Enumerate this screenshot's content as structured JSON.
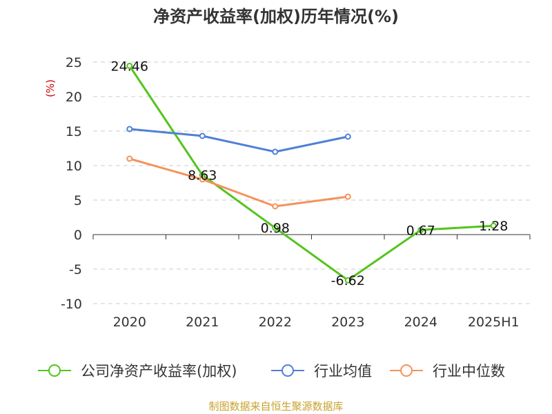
{
  "chart_data": {
    "type": "line",
    "title": "净资产收益率(加权)历年情况(%)",
    "ylabel": "(%)",
    "categories": [
      "2020",
      "2021",
      "2022",
      "2023",
      "2024",
      "2025H1"
    ],
    "ylim": [
      -10,
      25
    ],
    "yticks": [
      25,
      20,
      15,
      10,
      5,
      0,
      -5,
      -10
    ],
    "grid": true,
    "legend_position": "bottom",
    "series": [
      {
        "name": "公司净资产收益率(加权)",
        "color": "#52c41a",
        "values": [
          24.46,
          8.63,
          0.98,
          -6.62,
          0.67,
          1.28
        ],
        "labels": [
          "24.46",
          "8.63",
          "0.98",
          "-6.62",
          "0.67",
          "1.28"
        ]
      },
      {
        "name": "行业均值",
        "color": "#4e7fd9",
        "values": [
          15.3,
          14.3,
          12.0,
          14.2,
          null,
          null
        ]
      },
      {
        "name": "行业中位数",
        "color": "#f5925a",
        "values": [
          11.0,
          8.0,
          4.1,
          5.5,
          null,
          null
        ]
      }
    ]
  },
  "footer": {
    "source": "制图数据来自恒生聚源数据库"
  }
}
